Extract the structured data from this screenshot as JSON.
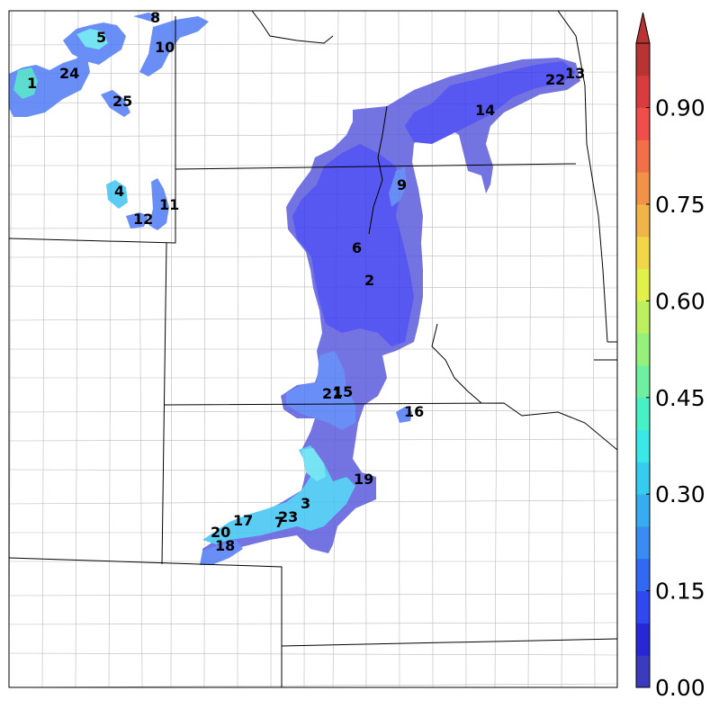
{
  "colors": {
    "purple": "#5b5bdc",
    "blue_dark": "#3a3af0",
    "blue_mid": "#4f7cf5",
    "cyan": "#3fc4f2",
    "cyan_light": "#5fe0f0",
    "teal": "#40d8c8"
  },
  "colorbar": {
    "ticks": [
      "0.00",
      "0.15",
      "0.30",
      "0.45",
      "0.60",
      "0.75",
      "0.90"
    ],
    "tick_values": [
      0.0,
      0.15,
      0.3,
      0.45,
      0.6,
      0.75,
      0.9
    ],
    "min": 0.0,
    "max": 1.0,
    "steps": 20,
    "extend": "max",
    "colors": [
      "#3b3bbd",
      "#2727d6",
      "#2f48f0",
      "#3368f2",
      "#3a8cf2",
      "#38acf0",
      "#36ccef",
      "#3ae8e6",
      "#48f0c6",
      "#6ef0a0",
      "#95f07c",
      "#bdf060",
      "#e2f04a",
      "#f0d648",
      "#f0b448",
      "#f09248",
      "#f07048",
      "#f04e48",
      "#d83c3c",
      "#b83434"
    ]
  },
  "region_labels": [
    "1",
    "24",
    "5",
    "8",
    "10",
    "25",
    "4",
    "11",
    "12",
    "9",
    "6",
    "2",
    "14",
    "22",
    "13",
    "21",
    "15",
    "16",
    "19",
    "3",
    "23",
    "7",
    "17",
    "20",
    "18"
  ]
}
